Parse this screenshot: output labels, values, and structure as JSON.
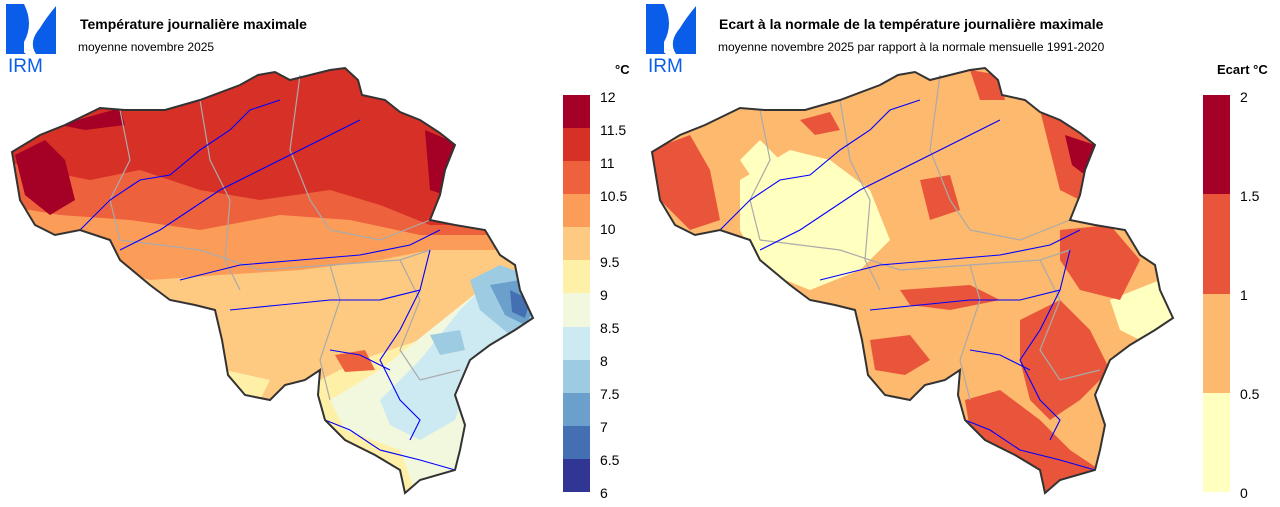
{
  "panels": [
    {
      "logo_text": "IRM",
      "title": "Température journalière maximale",
      "subtitle": "moyenne novembre 2025",
      "legend": {
        "unit": "°C",
        "labels": [
          "12",
          "11.5",
          "11",
          "10.5",
          "10",
          "9.5",
          "9",
          "8.5",
          "8",
          "7.5",
          "7",
          "6.5",
          "6"
        ],
        "colors": [
          "#a50026",
          "#d73027",
          "#ee613d",
          "#fb9d59",
          "#fec980",
          "#fff0a8",
          "#f1f8de",
          "#cde9f2",
          "#9dcbe1",
          "#6aa0cb",
          "#4470b3",
          "#313694"
        ]
      }
    },
    {
      "logo_text": "IRM",
      "title": "Ecart à la normale de la température journalière maximale",
      "subtitle": "moyenne novembre 2025 par rapport à la normale mensuelle 1991-2020",
      "legend": {
        "unit": "Ecart °C",
        "labels": [
          "2",
          "1.5",
          "1",
          "0.5",
          "0"
        ],
        "colors": [
          "#a50026",
          "#e9553a",
          "#fdb96e",
          "#ffffc0"
        ]
      }
    }
  ]
}
